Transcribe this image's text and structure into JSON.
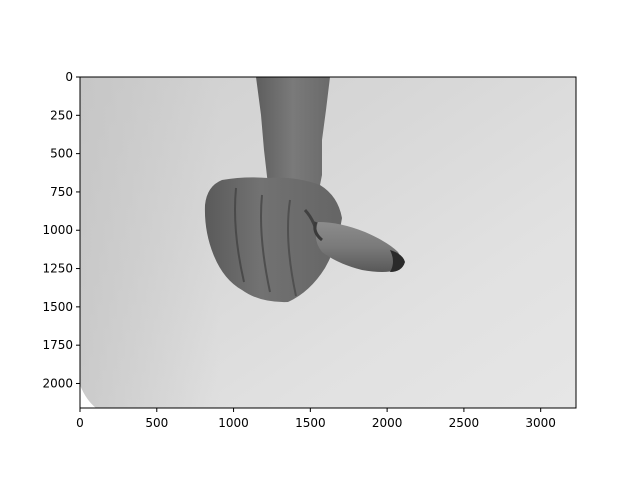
{
  "figure": {
    "type": "image-plot",
    "image_description_icon": "hand-gesture-photo",
    "colors": {
      "axes_frame": "#000000",
      "background": "#ffffff"
    }
  },
  "axes": {
    "xlim": [
      0,
      3230
    ],
    "ylim": [
      2160,
      0
    ],
    "x_ticks": [
      0,
      500,
      1000,
      1500,
      2000,
      2500,
      3000
    ],
    "y_ticks": [
      0,
      250,
      500,
      750,
      1000,
      1250,
      1500,
      1750,
      2000
    ],
    "x_tick_labels": [
      "0",
      "500",
      "1000",
      "1500",
      "2000",
      "2500",
      "3000"
    ],
    "y_tick_labels": [
      "0",
      "250",
      "500",
      "750",
      "1000",
      "1250",
      "1500",
      "1750",
      "2000"
    ]
  }
}
